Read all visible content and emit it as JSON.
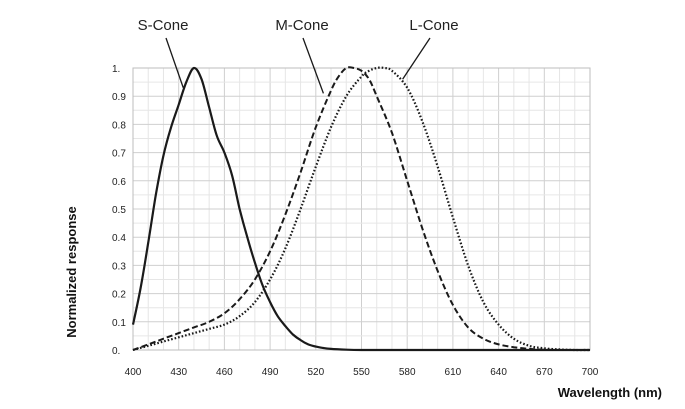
{
  "chart_data": {
    "type": "line",
    "title": "",
    "xlabel": "Wavelength (nm)",
    "ylabel": "Normalized response",
    "xlim": [
      400,
      700
    ],
    "ylim": [
      0,
      1
    ],
    "grid": true,
    "x_ticks": [
      "400",
      "430",
      "460",
      "490",
      "520",
      "550",
      "580",
      "610",
      "640",
      "670",
      "700"
    ],
    "y_ticks": [
      "0.",
      "0.1",
      "0.2",
      "0.3",
      "0.4",
      "0.5",
      "0.6",
      "0.7",
      "0.8",
      "0.9",
      "1."
    ],
    "series": [
      {
        "name": "S-Cone",
        "style": "solid",
        "x": [
          400,
          405,
          410,
          415,
          420,
          425,
          430,
          435,
          440,
          445,
          450,
          455,
          460,
          465,
          470,
          475,
          480,
          485,
          490,
          495,
          500,
          505,
          510,
          515,
          520,
          525,
          530,
          540,
          550,
          560,
          700
        ],
        "y": [
          0.09,
          0.22,
          0.38,
          0.55,
          0.69,
          0.79,
          0.87,
          0.95,
          1.0,
          0.96,
          0.86,
          0.76,
          0.7,
          0.62,
          0.5,
          0.4,
          0.31,
          0.23,
          0.17,
          0.12,
          0.085,
          0.055,
          0.035,
          0.02,
          0.012,
          0.007,
          0.004,
          0.001,
          0.0,
          0.0,
          0.0
        ]
      },
      {
        "name": "M-Cone",
        "style": "dashed",
        "x": [
          400,
          410,
          420,
          430,
          440,
          450,
          460,
          470,
          480,
          490,
          500,
          510,
          520,
          530,
          535,
          540,
          545,
          550,
          555,
          560,
          570,
          580,
          590,
          600,
          610,
          620,
          630,
          640,
          650,
          660,
          670,
          680,
          700
        ],
        "y": [
          0.0,
          0.02,
          0.04,
          0.06,
          0.08,
          0.1,
          0.13,
          0.18,
          0.25,
          0.35,
          0.48,
          0.63,
          0.79,
          0.92,
          0.97,
          1.0,
          1.0,
          0.99,
          0.96,
          0.9,
          0.77,
          0.6,
          0.43,
          0.28,
          0.16,
          0.08,
          0.04,
          0.02,
          0.01,
          0.004,
          0.001,
          0.0,
          0.0
        ]
      },
      {
        "name": "L-Cone",
        "style": "dotted",
        "x": [
          400,
          410,
          420,
          430,
          440,
          450,
          460,
          470,
          480,
          490,
          500,
          510,
          520,
          530,
          540,
          550,
          555,
          560,
          565,
          570,
          580,
          590,
          600,
          610,
          620,
          630,
          640,
          650,
          660,
          670,
          680,
          690,
          700
        ],
        "y": [
          0.0,
          0.015,
          0.03,
          0.045,
          0.06,
          0.075,
          0.09,
          0.12,
          0.17,
          0.25,
          0.36,
          0.5,
          0.65,
          0.79,
          0.9,
          0.97,
          0.99,
          1.0,
          1.0,
          0.99,
          0.93,
          0.81,
          0.65,
          0.47,
          0.3,
          0.17,
          0.09,
          0.04,
          0.015,
          0.006,
          0.002,
          0.0,
          0.0
        ]
      }
    ],
    "annotations": [
      {
        "text": "S-Cone",
        "target_series": "S-Cone"
      },
      {
        "text": "M-Cone",
        "target_series": "M-Cone"
      },
      {
        "text": "L-Cone",
        "target_series": "L-Cone"
      }
    ],
    "legend": "none"
  }
}
